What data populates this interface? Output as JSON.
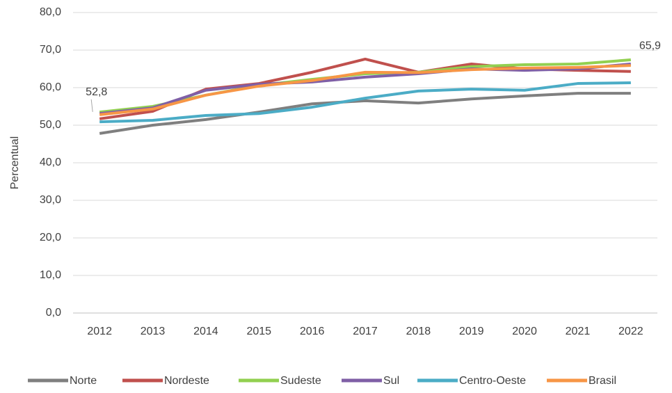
{
  "chart_data": {
    "type": "line",
    "y_label": "Percentual",
    "categories": [
      "2012",
      "2013",
      "2014",
      "2015",
      "2016",
      "2017",
      "2018",
      "2019",
      "2020",
      "2021",
      "2022"
    ],
    "series": [
      {
        "name": "Norte",
        "color": "#7f7f7f",
        "values": [
          47.8,
          50.0,
          51.5,
          53.5,
          55.7,
          56.5,
          55.9,
          57.0,
          57.8,
          58.5,
          58.5
        ]
      },
      {
        "name": "Nordeste",
        "color": "#c0504d",
        "values": [
          51.7,
          53.7,
          59.6,
          61.1,
          64.1,
          67.6,
          64.1,
          66.3,
          65.0,
          64.6,
          64.3
        ]
      },
      {
        "name": "Sudeste",
        "color": "#92d050",
        "values": [
          53.5,
          55.0,
          58.0,
          60.6,
          62.2,
          63.7,
          64.1,
          65.6,
          66.1,
          66.3,
          67.4
        ]
      },
      {
        "name": "Sul",
        "color": "#7f5fa6",
        "values": [
          53.1,
          54.6,
          59.3,
          60.9,
          61.5,
          62.8,
          63.7,
          65.0,
          64.6,
          65.0,
          66.3
        ]
      },
      {
        "name": "Centro-Oeste",
        "color": "#4bacc6",
        "values": [
          50.9,
          51.3,
          52.6,
          53.1,
          54.8,
          57.2,
          59.1,
          59.6,
          59.3,
          61.1,
          61.3
        ]
      },
      {
        "name": "Brasil",
        "color": "#f79646",
        "values": [
          52.8,
          54.3,
          58.0,
          60.4,
          61.9,
          64.1,
          64.0,
          64.8,
          65.2,
          65.4,
          65.9
        ],
        "value_labels": [
          "52,8",
          null,
          null,
          null,
          null,
          null,
          null,
          null,
          null,
          null,
          "65,9"
        ]
      }
    ],
    "ylim": [
      0,
      80
    ],
    "yticks": [
      {
        "value": 0,
        "label": "0,0"
      },
      {
        "value": 10,
        "label": "10,0"
      },
      {
        "value": 20,
        "label": "20,0"
      },
      {
        "value": 30,
        "label": "30,0"
      },
      {
        "value": 40,
        "label": "40,0"
      },
      {
        "value": 50,
        "label": "50,0"
      },
      {
        "value": 60,
        "label": "60,0"
      },
      {
        "value": 70,
        "label": "70,0"
      },
      {
        "value": 80,
        "label": "80,0"
      }
    ],
    "grid": true,
    "legend": "bottom"
  }
}
